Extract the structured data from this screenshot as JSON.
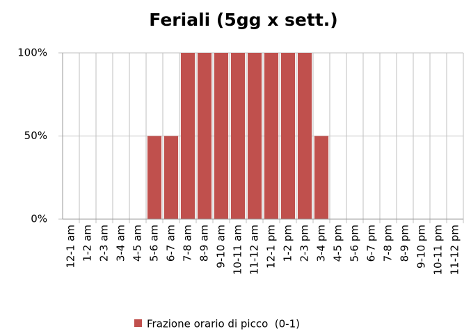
{
  "chart_data": {
    "type": "bar",
    "title": "Feriali (5gg x sett.)",
    "categories": [
      "12-1 am",
      "1-2 am",
      "2-3 am",
      "3-4 am",
      "4-5 am",
      "5-6 am",
      "6-7 am",
      "7-8 am",
      "8-9 am",
      "9-10 am",
      "10-11 am",
      "11-12 am",
      "12-1 pm",
      "1-2 pm",
      "2-3 pm",
      "3-4 pm",
      "4-5 pm",
      "5-6 pm",
      "6-7 pm",
      "7-8 pm",
      "8-9 pm",
      "9-10 pm",
      "10-11 pm",
      "11-12 pm"
    ],
    "series": [
      {
        "name": "Frazione orario di picco  (0-1)",
        "color": "#c0504d",
        "values": [
          0,
          0,
          0,
          0,
          0,
          50,
          50,
          100,
          100,
          100,
          100,
          100,
          100,
          100,
          100,
          50,
          0,
          0,
          0,
          0,
          0,
          0,
          0,
          0
        ]
      }
    ],
    "ylim": [
      0,
      100
    ],
    "yticks": [
      {
        "value": 0,
        "label": "0%"
      },
      {
        "value": 50,
        "label": "50%"
      },
      {
        "value": 100,
        "label": "100%"
      }
    ],
    "grid": true,
    "legend": "bottom"
  }
}
